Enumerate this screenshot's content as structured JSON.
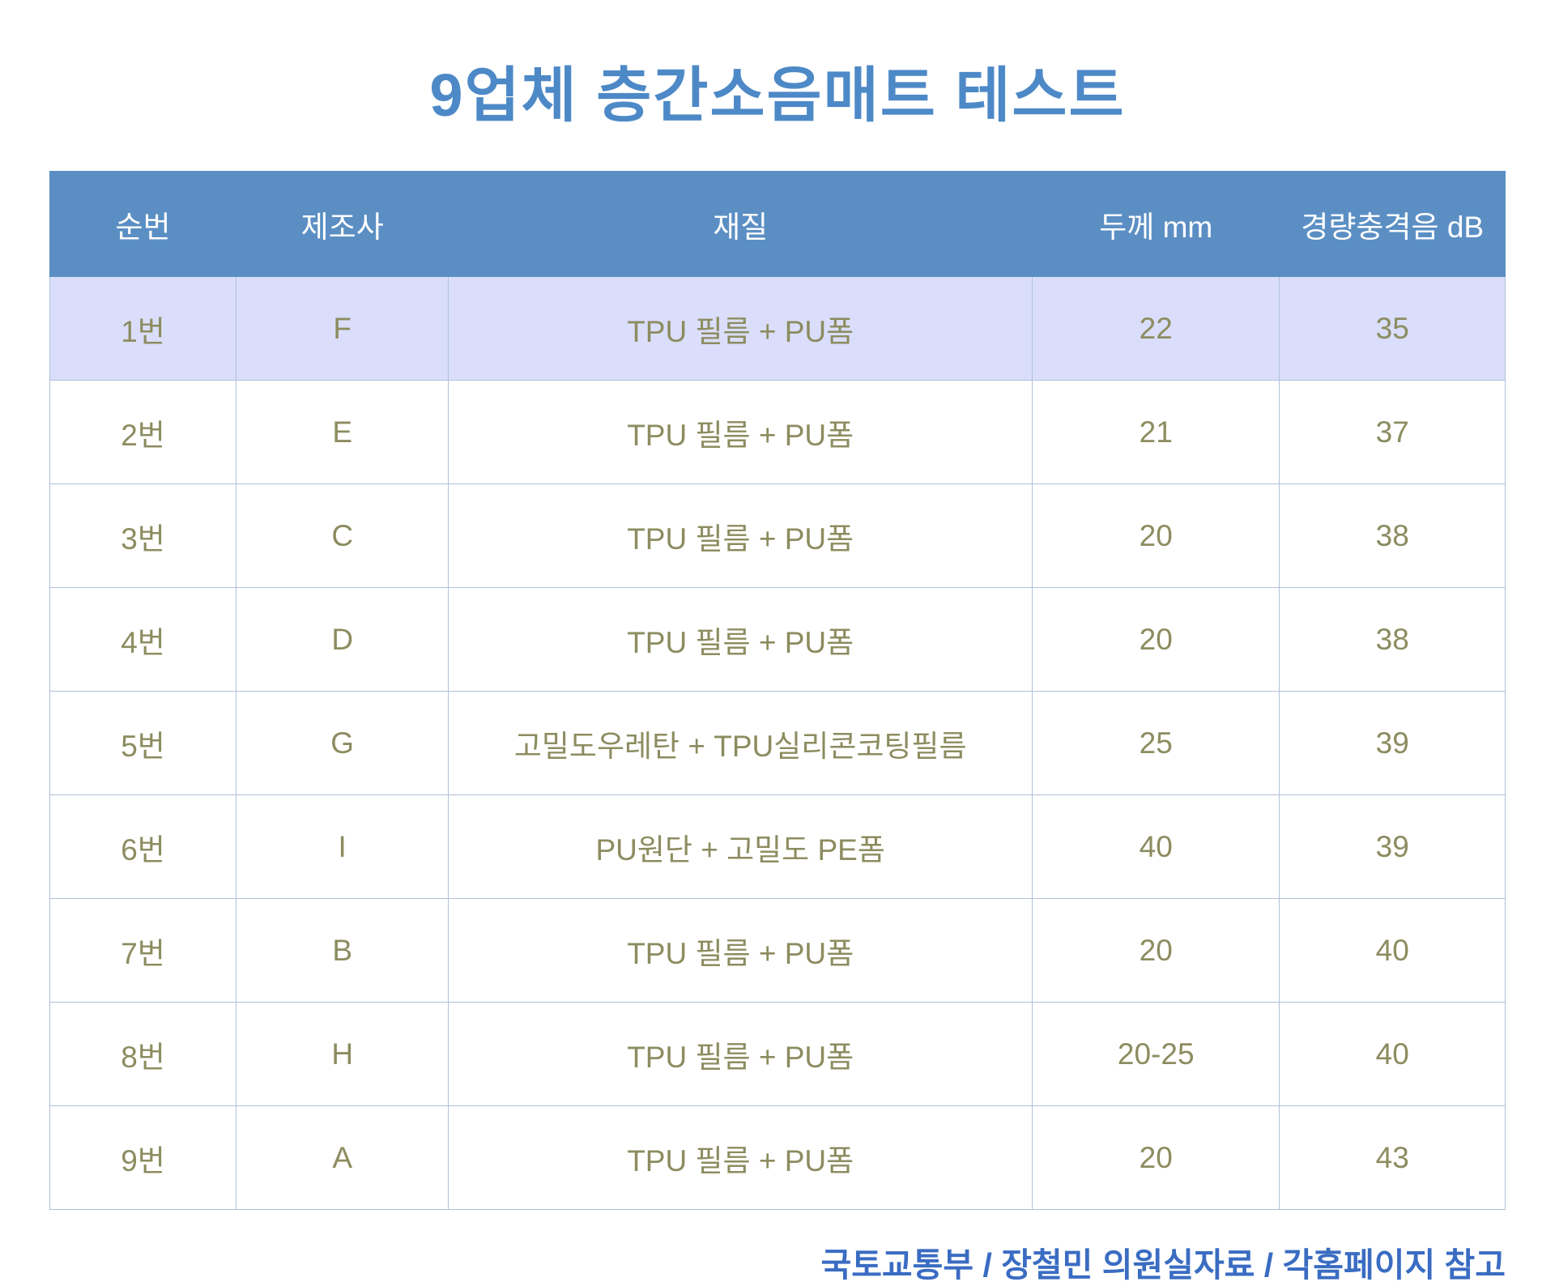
{
  "title": "9업체 층간소음매트 테스트",
  "footer": "국토교통부 / 장철민 의원실자료 / 각홈페이지 참고",
  "colors": {
    "title": "#4e89c7",
    "header_bg": "#5b8fc4",
    "header_text": "#ffffff",
    "highlight_row_bg": "#dadefa",
    "border": "#b0c1da",
    "cell_text": "#8c8c60",
    "footer_text": "#3a6cc2",
    "page_bg": "#ffffff"
  },
  "chart_data": {
    "type": "table",
    "title": "9업체 층간소음매트 테스트",
    "columns": [
      "순번",
      "제조사",
      "재질",
      "두께 mm",
      "경량충격음 dB"
    ],
    "rows": [
      [
        "1번",
        "F",
        "TPU 필름 + PU폼",
        "22",
        "35"
      ],
      [
        "2번",
        "E",
        "TPU 필름 + PU폼",
        "21",
        "37"
      ],
      [
        "3번",
        "C",
        "TPU 필름 + PU폼",
        "20",
        "38"
      ],
      [
        "4번",
        "D",
        "TPU 필름 + PU폼",
        "20",
        "38"
      ],
      [
        "5번",
        "G",
        "고밀도우레탄 + TPU실리콘코팅필름",
        "25",
        "39"
      ],
      [
        "6번",
        "I",
        "PU원단 + 고밀도 PE폼",
        "40",
        "39"
      ],
      [
        "7번",
        "B",
        "TPU 필름 + PU폼",
        "20",
        "40"
      ],
      [
        "8번",
        "H",
        "TPU 필름 + PU폼",
        "20-25",
        "40"
      ],
      [
        "9번",
        "A",
        "TPU 필름 + PU폼",
        "20",
        "43"
      ]
    ],
    "highlighted_row_index": 0,
    "source_note": "국토교통부 / 장철민 의원실자료 / 각홈페이지 참고"
  }
}
